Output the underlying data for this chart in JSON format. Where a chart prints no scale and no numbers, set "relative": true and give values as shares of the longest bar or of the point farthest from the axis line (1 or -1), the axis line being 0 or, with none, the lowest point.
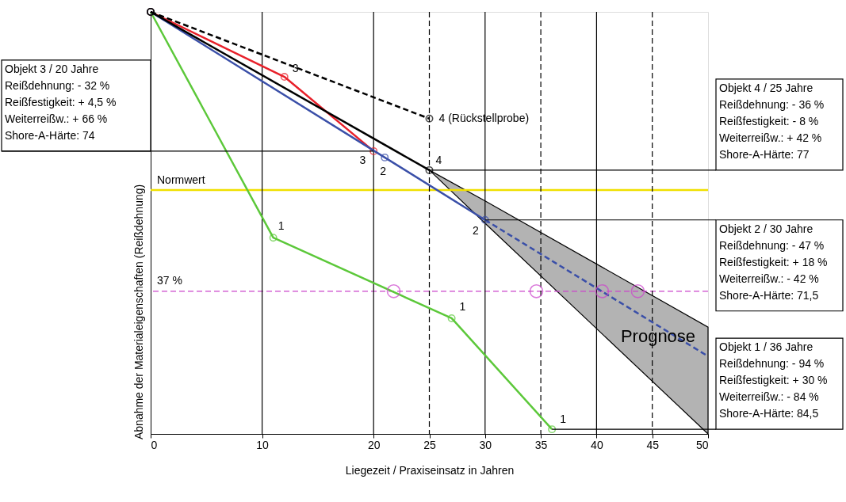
{
  "chart_data": {
    "type": "line",
    "relative": true,
    "xlabel": "Liegezeit / Praxiseinsatz in Jahren",
    "ylabel": "Abnahme der Materialeigenschaften (Reißdehnung)",
    "xlim": [
      0,
      50
    ],
    "xticks": [
      0,
      10,
      20,
      25,
      30,
      35,
      40,
      45,
      50
    ],
    "grid": false,
    "marker": "circle",
    "series": [
      {
        "color": "#5cc83a",
        "x": [
          0,
          11,
          27,
          36
        ],
        "values": [
          1.0,
          0.465,
          0.274,
          0.011
        ],
        "line_style": "solid"
      },
      {
        "color": "#e8202a",
        "x": [
          0,
          12,
          20
        ],
        "values": [
          1.0,
          0.846,
          0.67
        ],
        "line_style": "solid"
      },
      {
        "color": "#3a4fa8",
        "x": [
          0,
          21,
          30
        ],
        "values": [
          1.0,
          0.655,
          0.507
        ],
        "line_style": "solid"
      },
      {
        "color": "#3a4fa8",
        "x": [
          25,
          30,
          50
        ],
        "values": [
          null,
          0.507,
          0.184
        ],
        "line_style": "dashed",
        "marker": "none",
        "lower": [
          0.625,
          0.499,
          0.0
        ],
        "upper": [
          0.625,
          0.552,
          0.253
        ]
      },
      {
        "color": "#000000",
        "x": [
          0,
          25
        ],
        "values": [
          1.0,
          0.625
        ],
        "line_style": "solid"
      },
      {
        "color": "#000000",
        "x": [
          0,
          25
        ],
        "values": [
          1.0,
          0.747
        ],
        "line_style": "dashed"
      },
      {
        "type": "scatter",
        "color": "#cc44cc",
        "x": [
          21.8,
          34.6,
          40.5,
          43.7
        ],
        "values": [
          0.338,
          0.338,
          0.338,
          0.338
        ],
        "marker": "circle"
      }
    ],
    "ref_lines": [
      {
        "axis": "y",
        "value": 0.578,
        "label": "Normwert",
        "color": "#f0e000",
        "line_style": "solid"
      },
      {
        "axis": "y",
        "value": 0.338,
        "color": "#cc44cc",
        "line_style": "dashed"
      },
      {
        "axis": "x",
        "value": 10,
        "color": "#000000",
        "line_style": "solid"
      },
      {
        "axis": "x",
        "value": 20,
        "color": "#000000",
        "line_style": "solid"
      },
      {
        "axis": "x",
        "value": 25,
        "color": "#000000",
        "line_style": "dashed"
      },
      {
        "axis": "x",
        "value": 30,
        "color": "#000000",
        "line_style": "solid"
      },
      {
        "axis": "x",
        "value": 35,
        "color": "#000000",
        "line_style": "dashed"
      },
      {
        "axis": "x",
        "value": 40,
        "color": "#000000",
        "line_style": "solid"
      },
      {
        "axis": "x",
        "value": 45,
        "color": "#000000",
        "line_style": "dashed"
      }
    ],
    "annotations": [
      {
        "text": "Objekt 3 / 20 Jahre\nReißdehnung: - 32 %\nReißfestigkeit: + 4,5 %\nWeiterreißw.: + 66 %\nShore-A-Härte: 74",
        "x": 20,
        "y": 0.67
      },
      {
        "text": "Objekt 4 / 25 Jahre\nReißdehnung: - 36 %\nReißfestigkeit: - 8 %\nWeiterreißw.: + 42 %\nShore-A-Härte: 77",
        "x": 25,
        "y": 0.625
      },
      {
        "text": "Objekt 2 / 30 Jahre\nReißdehnung: - 47 %\nReißfestigkeit: + 18 %\nWeiterreißw.: - 42 %\nShore-A-Härte: 71,5",
        "x": 30,
        "y": 0.507
      },
      {
        "text": "Objekt 1 / 36 Jahre\nReißdehnung: - 94 %\nReißfestigkeit: + 30 %\nWeiterreißw.: - 84 %\nShore-A-Härte: 84,5",
        "x": 36,
        "y": 0.011
      },
      {
        "text": "3",
        "x": 12,
        "y": 0.846
      },
      {
        "text": "3",
        "x": 20,
        "y": 0.67
      },
      {
        "text": "2",
        "x": 21,
        "y": 0.655
      },
      {
        "text": "4",
        "x": 25,
        "y": 0.625
      },
      {
        "text": "2",
        "x": 30,
        "y": 0.507
      },
      {
        "text": "1",
        "x": 11,
        "y": 0.465
      },
      {
        "text": "1",
        "x": 27,
        "y": 0.274
      },
      {
        "text": "1",
        "x": 36,
        "y": 0.011
      },
      {
        "text": "4 (Rückstellprobe)",
        "x": 25,
        "y": 0.747
      },
      "Prognose",
      "37 %"
    ]
  }
}
